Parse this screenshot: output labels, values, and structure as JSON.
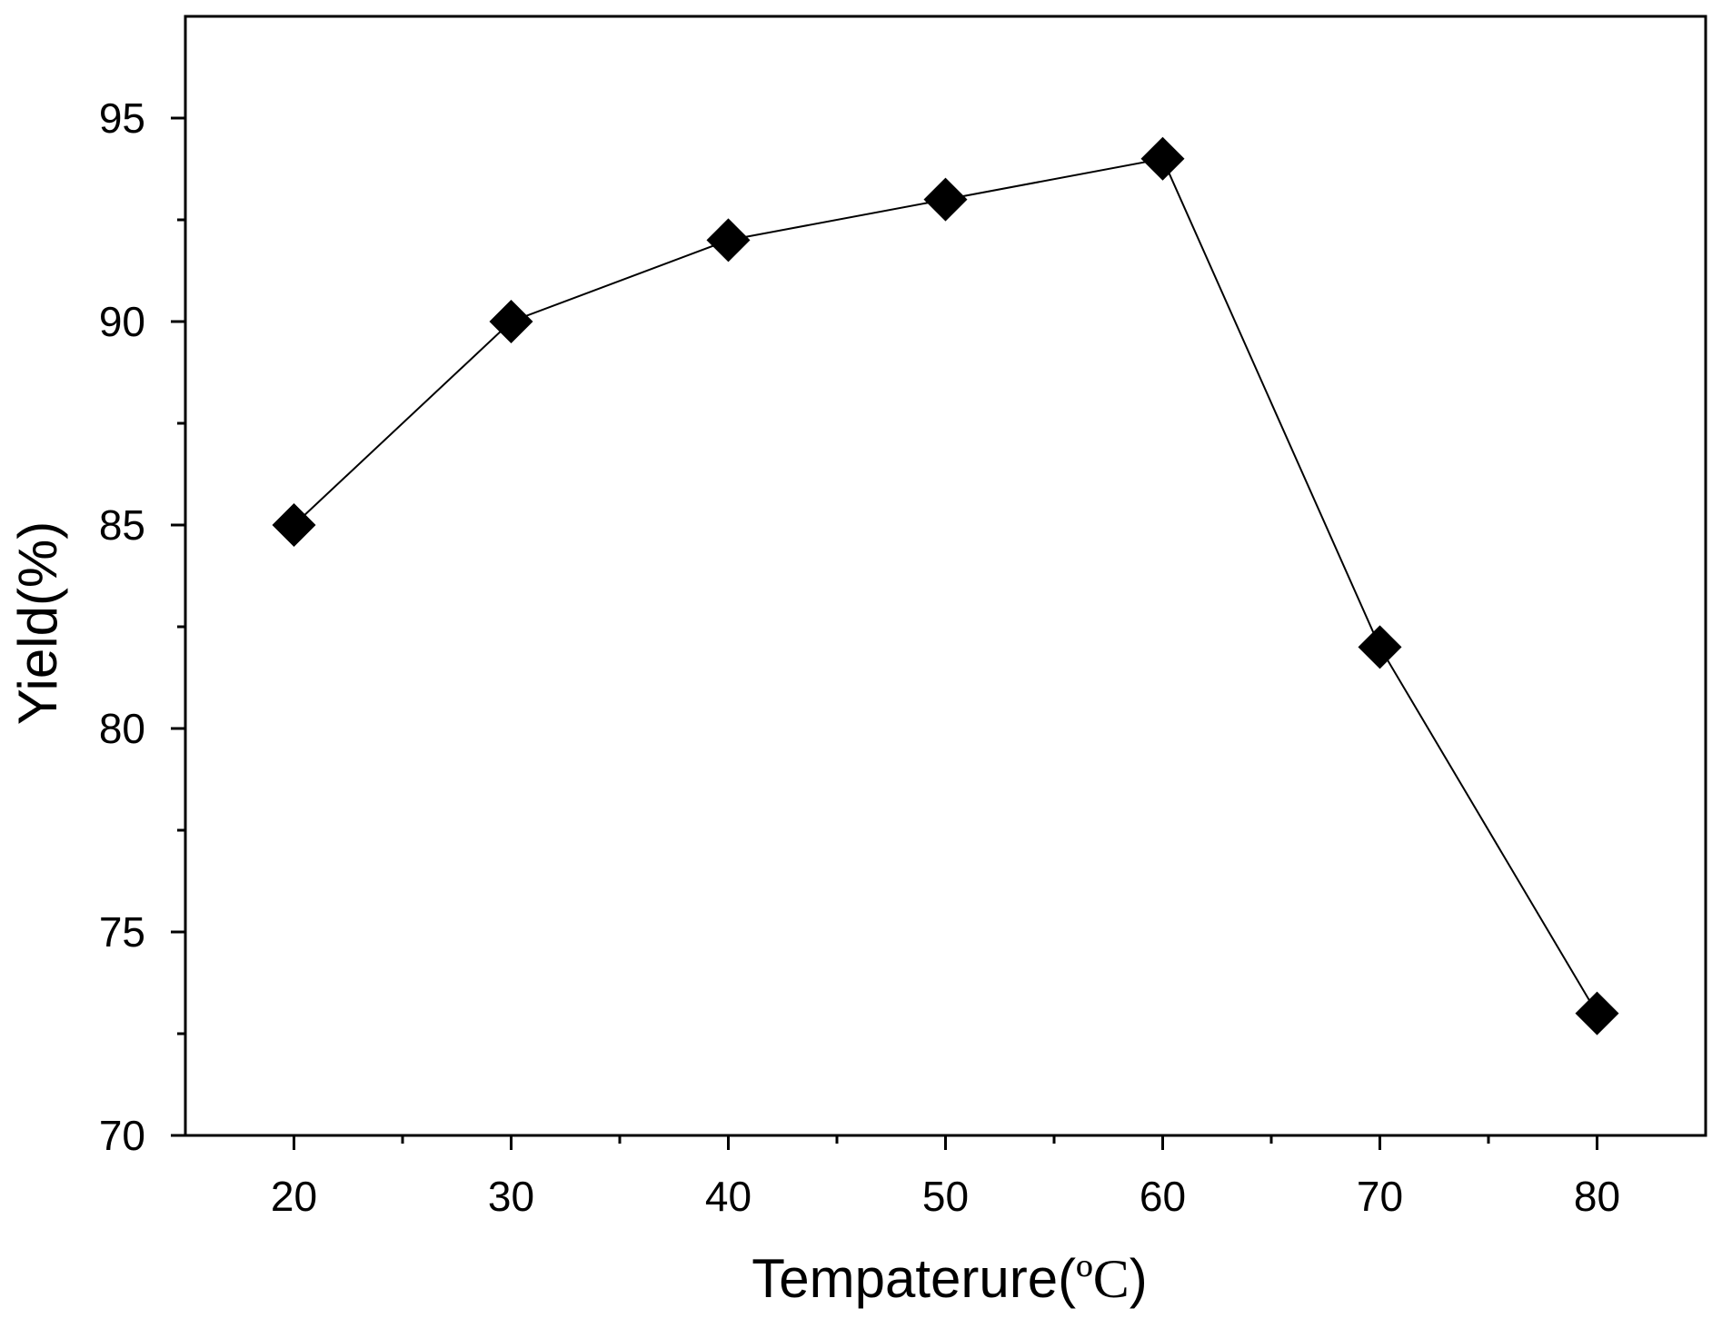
{
  "chart_data": {
    "type": "line",
    "title": "",
    "xlabel": "Tempaterure(",
    "xlabel_unit": "ºC",
    "xlabel_close": ")",
    "ylabel": "Yield(%)",
    "xlim": [
      15,
      85
    ],
    "ylim": [
      70,
      97.5
    ],
    "x_ticks": [
      20,
      30,
      40,
      50,
      60,
      70,
      80
    ],
    "x_minor_ticks": [
      25,
      35,
      45,
      55,
      65,
      75
    ],
    "y_ticks": [
      70,
      75,
      80,
      85,
      90,
      95
    ],
    "y_minor_ticks": [
      72.5,
      77.5,
      82.5,
      87.5,
      92.5
    ],
    "grid": false,
    "legend": "none",
    "series": [
      {
        "marker": "diamond",
        "color": "#000000",
        "x": [
          20,
          30,
          40,
          50,
          60,
          70,
          80
        ],
        "y": [
          85,
          90,
          92,
          93,
          94,
          82,
          73
        ]
      }
    ]
  }
}
